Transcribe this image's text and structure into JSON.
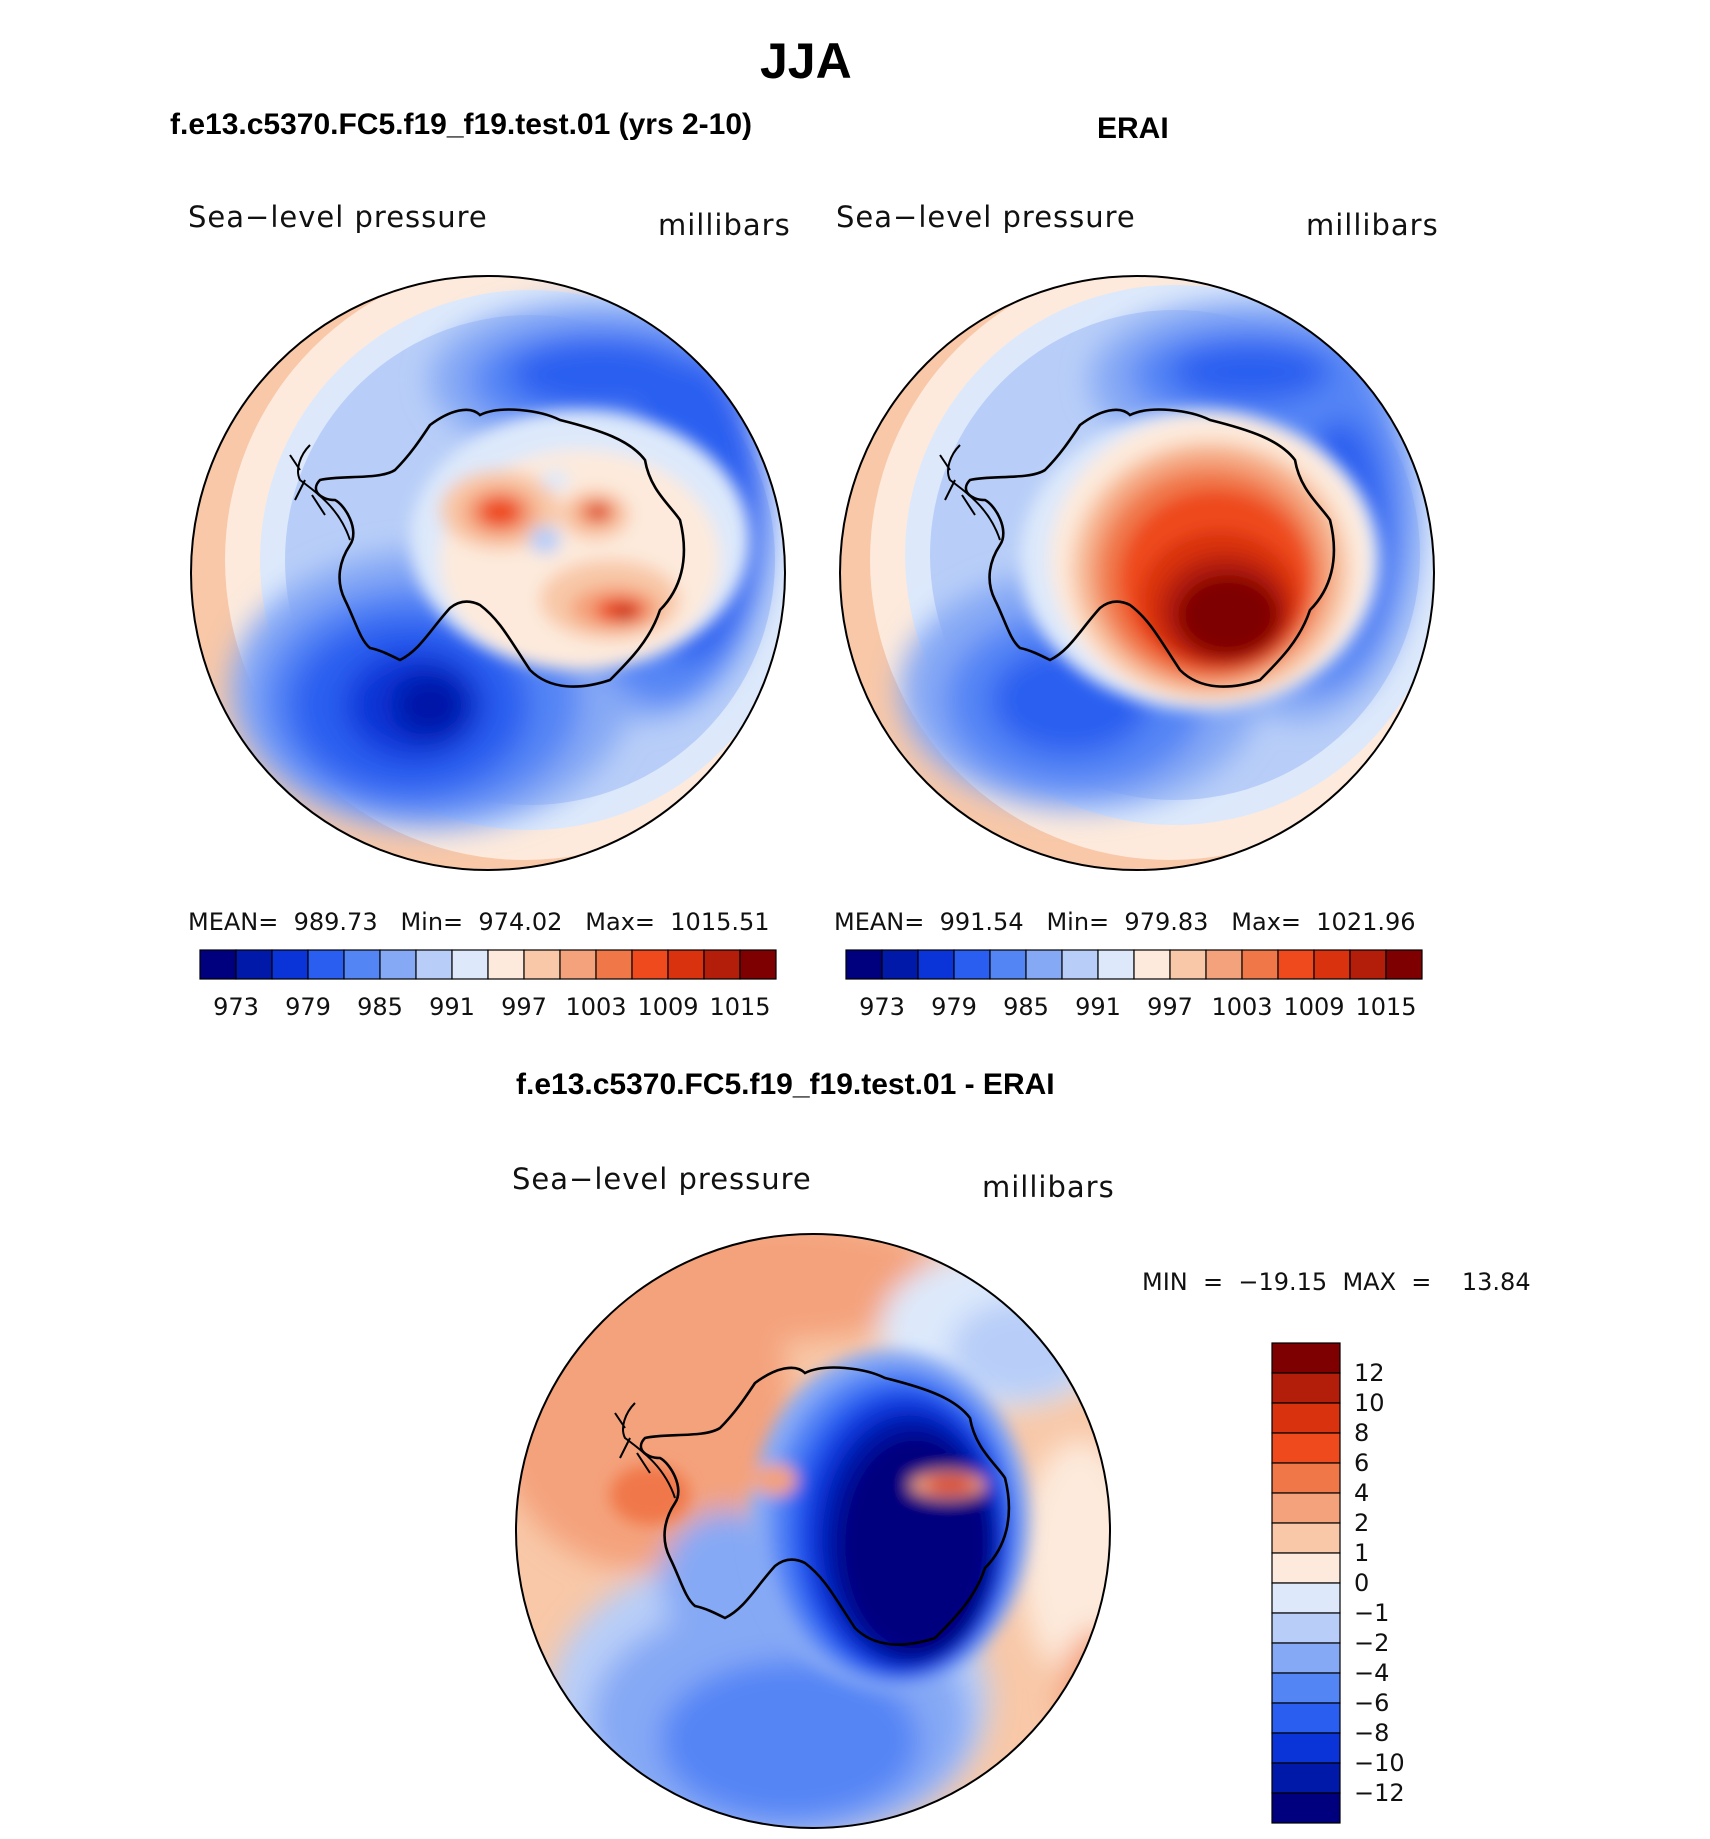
{
  "figure": {
    "season": "JJA",
    "model_title": "f.e13.c5370.FC5.f19_f19.test.01 (yrs 2-10)",
    "obs_title": "ERAI",
    "diff_title": "f.e13.c5370.FC5.f19_f19.test.01 - ERAI"
  },
  "panels": {
    "model": {
      "variable": "Sea−level pressure",
      "units": "millibars",
      "stats": "MEAN=  989.73   Min=  974.02   Max=  1015.51"
    },
    "obs": {
      "variable": "Sea−level pressure",
      "units": "millibars",
      "stats": "MEAN=  991.54   Min=  979.83   Max=  1021.96"
    },
    "diff": {
      "variable": "Sea−level pressure",
      "units": "millibars",
      "minmax": "MIN  =  −19.15  MAX  =    13.84"
    }
  },
  "colorbars": {
    "abs_labels": [
      "973",
      "979",
      "985",
      "991",
      "997",
      "1003",
      "1009",
      "1015"
    ],
    "abs_colors": [
      "#00007f",
      "#0019a8",
      "#0b34d8",
      "#2a5ef0",
      "#5485f5",
      "#86a9f5",
      "#b8cef8",
      "#dde9fb",
      "#fdeadc",
      "#f8c8a8",
      "#f4a27c",
      "#f07748",
      "#ee4a1e",
      "#d8320f",
      "#b31e0a",
      "#7f0000"
    ],
    "diff_labels": [
      "12",
      "10",
      "8",
      "6",
      "4",
      "2",
      "1",
      "0",
      "−1",
      "−2",
      "−4",
      "−6",
      "−8",
      "−10",
      "−12"
    ],
    "diff_colors": [
      "#7f0000",
      "#b31e0a",
      "#d8320f",
      "#ee4a1e",
      "#f07748",
      "#f4a27c",
      "#f8c8a8",
      "#fdeadc",
      "#dde9fb",
      "#b8cef8",
      "#86a9f5",
      "#5485f5",
      "#2a5ef0",
      "#0b34d8",
      "#0019a8",
      "#00007f"
    ]
  },
  "chart_data": [
    {
      "type": "heatmap",
      "title": "f.e13.c5370.FC5.f19_f19.test.01 (yrs 2-10)",
      "variable": "Sea-level pressure",
      "units": "millibars",
      "projection": "south polar stereographic",
      "mean": 989.73,
      "min": 974.02,
      "max": 1015.51,
      "contour_levels": [
        973,
        976,
        979,
        982,
        985,
        988,
        991,
        994,
        997,
        1000,
        1003,
        1006,
        1009,
        1012,
        1015
      ]
    },
    {
      "type": "heatmap",
      "title": "ERAI",
      "variable": "Sea-level pressure",
      "units": "millibars",
      "projection": "south polar stereographic",
      "mean": 991.54,
      "min": 979.83,
      "max": 1021.96,
      "contour_levels": [
        973,
        976,
        979,
        982,
        985,
        988,
        991,
        994,
        997,
        1000,
        1003,
        1006,
        1009,
        1012,
        1015
      ]
    },
    {
      "type": "heatmap",
      "title": "f.e13.c5370.FC5.f19_f19.test.01 - ERAI",
      "variable": "Sea-level pressure",
      "units": "millibars",
      "projection": "south polar stereographic",
      "min": -19.15,
      "max": 13.84,
      "contour_levels": [
        -12,
        -10,
        -8,
        -6,
        -4,
        -2,
        -1,
        0,
        1,
        2,
        4,
        6,
        8,
        10,
        12
      ]
    }
  ]
}
